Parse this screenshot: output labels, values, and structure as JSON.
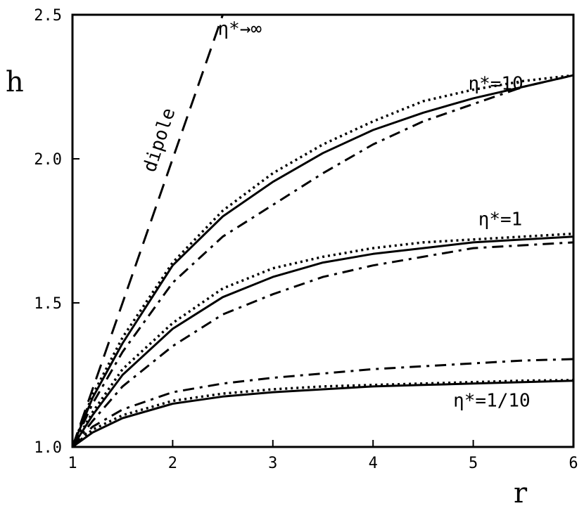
{
  "chart_data": {
    "type": "line",
    "xlabel": "r",
    "ylabel": "h",
    "xlim": [
      1,
      6
    ],
    "ylim": [
      1.0,
      2.5
    ],
    "x_ticks": [
      {
        "value": 1,
        "label": "1"
      },
      {
        "value": 2,
        "label": "2"
      },
      {
        "value": 3,
        "label": "3"
      },
      {
        "value": 4,
        "label": "4"
      },
      {
        "value": 5,
        "label": "5"
      },
      {
        "value": 6,
        "label": "6"
      }
    ],
    "y_ticks": [
      {
        "value": 1.0,
        "label": "1.0"
      },
      {
        "value": 1.5,
        "label": "1.5"
      },
      {
        "value": 2.0,
        "label": "2.0"
      },
      {
        "value": 2.5,
        "label": "2.5"
      }
    ],
    "grid": false,
    "series": [
      {
        "style": "dashed",
        "x": [
          1,
          1.5,
          2,
          2.5
        ],
        "y": [
          1.0,
          1.5,
          2.0,
          2.5
        ]
      },
      {
        "style": "dotted",
        "x": [
          1,
          1.2,
          1.5,
          2,
          2.5,
          3,
          3.5,
          4,
          4.5,
          5,
          5.5,
          6
        ],
        "y": [
          1.0,
          1.18,
          1.38,
          1.64,
          1.82,
          1.95,
          2.05,
          2.13,
          2.2,
          2.24,
          2.27,
          2.29
        ]
      },
      {
        "style": "solid",
        "x": [
          1,
          1.2,
          1.5,
          2,
          2.5,
          3,
          3.5,
          4,
          4.5,
          5,
          5.5,
          6
        ],
        "y": [
          1.0,
          1.17,
          1.36,
          1.63,
          1.8,
          1.92,
          2.02,
          2.1,
          2.16,
          2.21,
          2.25,
          2.29
        ]
      },
      {
        "style": "dashdot",
        "x": [
          1,
          1.2,
          1.5,
          2,
          2.5,
          3,
          3.5,
          4,
          4.5,
          5,
          5.5,
          6
        ],
        "y": [
          1.0,
          1.15,
          1.33,
          1.57,
          1.73,
          1.84,
          1.95,
          2.05,
          2.13,
          2.19,
          2.25,
          2.29
        ]
      },
      {
        "style": "dotted",
        "x": [
          1,
          1.2,
          1.5,
          2,
          2.5,
          3,
          3.5,
          4,
          4.5,
          5,
          5.5,
          6
        ],
        "y": [
          1.0,
          1.12,
          1.27,
          1.43,
          1.55,
          1.62,
          1.66,
          1.69,
          1.71,
          1.72,
          1.73,
          1.74
        ]
      },
      {
        "style": "solid",
        "x": [
          1,
          1.2,
          1.5,
          2,
          2.5,
          3,
          3.5,
          4,
          4.5,
          5,
          5.5,
          6
        ],
        "y": [
          1.0,
          1.11,
          1.25,
          1.41,
          1.52,
          1.59,
          1.64,
          1.67,
          1.69,
          1.71,
          1.72,
          1.73
        ]
      },
      {
        "style": "dashdot",
        "x": [
          1,
          1.2,
          1.5,
          2,
          2.5,
          3,
          3.5,
          4,
          4.5,
          5,
          5.5,
          6
        ],
        "y": [
          1.0,
          1.09,
          1.21,
          1.35,
          1.46,
          1.53,
          1.59,
          1.63,
          1.66,
          1.69,
          1.7,
          1.71
        ]
      },
      {
        "style": "dashdot",
        "x": [
          1,
          1.2,
          1.5,
          2,
          2.5,
          3,
          3.5,
          4,
          4.5,
          5,
          5.5,
          6
        ],
        "y": [
          1.0,
          1.07,
          1.13,
          1.19,
          1.22,
          1.24,
          1.255,
          1.27,
          1.28,
          1.29,
          1.3,
          1.305
        ]
      },
      {
        "style": "dotted",
        "x": [
          1,
          1.2,
          1.5,
          2,
          2.5,
          3,
          3.5,
          4,
          4.5,
          5,
          5.5,
          6
        ],
        "y": [
          1.0,
          1.06,
          1.11,
          1.16,
          1.185,
          1.2,
          1.21,
          1.215,
          1.22,
          1.225,
          1.23,
          1.232
        ]
      },
      {
        "style": "solid",
        "x": [
          1,
          1.2,
          1.5,
          2,
          2.5,
          3,
          3.5,
          4,
          4.5,
          5,
          5.5,
          6
        ],
        "y": [
          1.0,
          1.05,
          1.1,
          1.15,
          1.175,
          1.19,
          1.2,
          1.21,
          1.215,
          1.22,
          1.225,
          1.23
        ]
      }
    ],
    "annotations": [
      {
        "text": "η*→∞",
        "x": 2.45,
        "y": 2.43
      },
      {
        "text": "η*=10",
        "x": 4.95,
        "y": 2.24
      },
      {
        "text": "dipole",
        "x": 1.82,
        "y": 1.95,
        "rotate": -72
      },
      {
        "text": "η*=1",
        "x": 5.05,
        "y": 1.77
      },
      {
        "text": "η*=1/10",
        "x": 4.8,
        "y": 1.14
      }
    ]
  }
}
